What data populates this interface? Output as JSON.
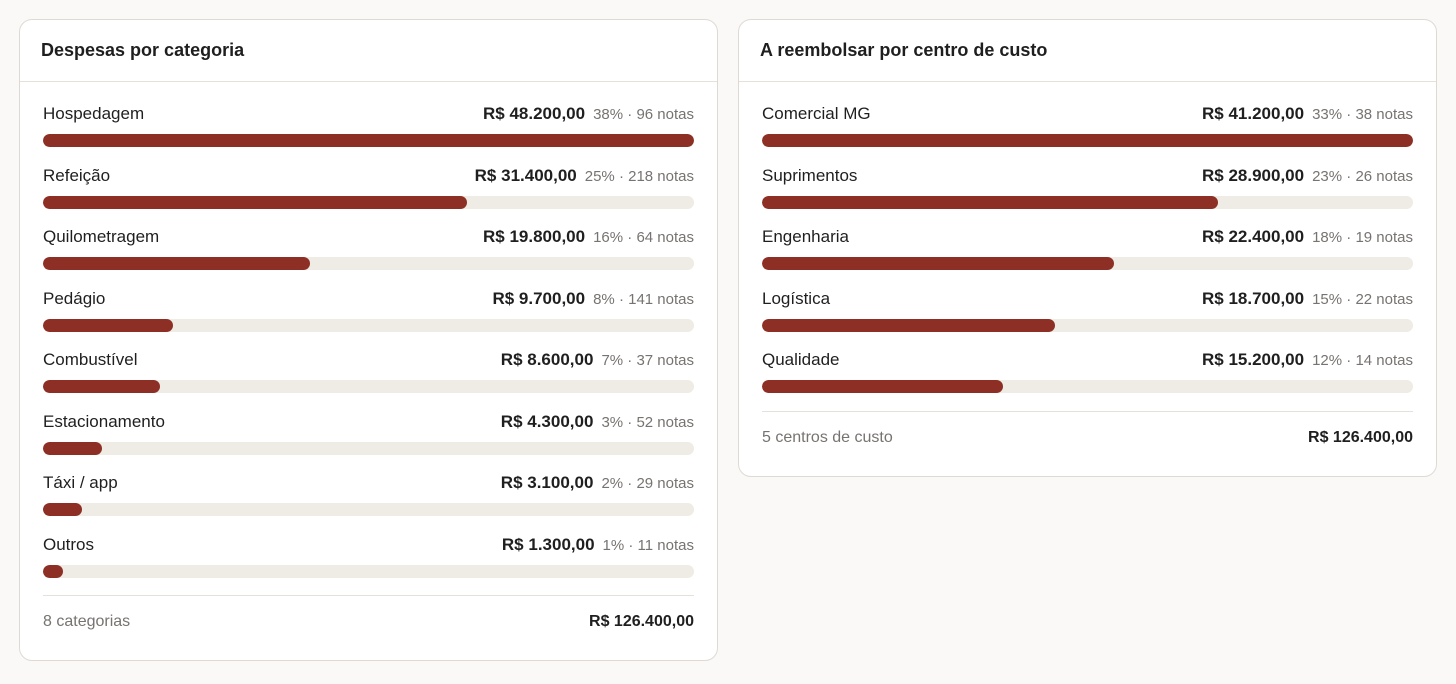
{
  "categorias": {
    "title": "Despesas por categoria",
    "items": [
      {
        "label": "Hospedagem",
        "value": "R$ 48.200,00",
        "meta": "38% · 96 notas",
        "share": 1.0
      },
      {
        "label": "Refeição",
        "value": "R$ 31.400,00",
        "meta": "25% · 218 notas",
        "share": 0.651
      },
      {
        "label": "Quilometragem",
        "value": "R$ 19.800,00",
        "meta": "16% · 64 notas",
        "share": 0.41
      },
      {
        "label": "Pedágio",
        "value": "R$ 9.700,00",
        "meta": "8% · 141 notas",
        "share": 0.2
      },
      {
        "label": "Combustível",
        "value": "R$ 8.600,00",
        "meta": "7% · 37 notas",
        "share": 0.18
      },
      {
        "label": "Estacionamento",
        "value": "R$ 4.300,00",
        "meta": "3% · 52 notas",
        "share": 0.09
      },
      {
        "label": "Táxi / app",
        "value": "R$ 3.100,00",
        "meta": "2% · 29 notas",
        "share": 0.06
      },
      {
        "label": "Outros",
        "value": "R$ 1.300,00",
        "meta": "1% · 11 notas",
        "share": 0.03
      }
    ],
    "footer_label": "8 categorias",
    "footer_total": "R$ 126.400,00"
  },
  "centros": {
    "title": "A reembolsar por centro de custo",
    "items": [
      {
        "label": "Comercial MG",
        "value": "R$ 41.200,00",
        "meta": "33% · 38 notas",
        "share": 1.0
      },
      {
        "label": "Suprimentos",
        "value": "R$ 28.900,00",
        "meta": "23% · 26 notas",
        "share": 0.7
      },
      {
        "label": "Engenharia",
        "value": "R$ 22.400,00",
        "meta": "18% · 19 notas",
        "share": 0.54
      },
      {
        "label": "Logística",
        "value": "R$ 18.700,00",
        "meta": "15% · 22 notas",
        "share": 0.45
      },
      {
        "label": "Qualidade",
        "value": "R$ 15.200,00",
        "meta": "12% · 14 notas",
        "share": 0.37
      }
    ],
    "footer_label": "5 centros de custo",
    "footer_total": "R$ 126.400,00"
  },
  "colors": {
    "bar_fill": "#8e2f25",
    "bar_track": "#efebe5"
  }
}
